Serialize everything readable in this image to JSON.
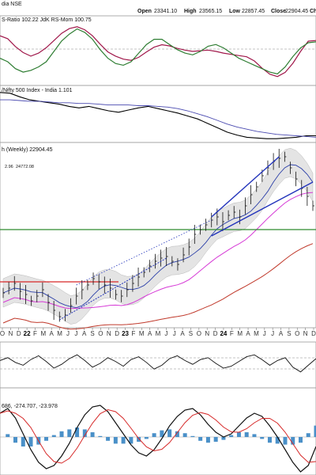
{
  "header": {
    "exchange_partial": "dia NSE",
    "open_label": "Open",
    "open": "23341.10",
    "high_label": "High",
    "high": "23565.15",
    "low_label": "Low",
    "low": "22857.45",
    "close_label": "Close",
    "close": "22904.45",
    "chg_partial": "Ch"
  },
  "chart_data": [
    {
      "type": "line",
      "panel": "rrg-indicators",
      "label": "S-Ratio 102.22 JdK RS-Mom 100.75",
      "series": [
        {
          "name": "JdK RS-Ratio",
          "color": "#a0174a",
          "values": [
            103,
            102.5,
            101.2,
            100.2,
            99.6,
            100.1,
            101.0,
            102.2,
            103.4,
            104.2,
            104.5,
            104.0,
            103.0,
            101.6,
            100.3,
            99.6,
            99.1,
            98.9,
            99.4,
            100.3,
            101.1,
            101.5,
            101.3,
            100.9,
            100.6,
            100.4,
            100.5,
            100.6,
            100.4,
            100.1,
            99.9,
            99.7,
            99.5,
            98.8,
            97.6,
            96.6,
            96.2,
            96.9,
            98.4,
            100.4,
            102.1,
            102.2
          ]
        },
        {
          "name": "JdK RS-Mom",
          "color": "#2e7d32",
          "values": [
            99.8,
            99.6,
            99.2,
            99.0,
            99.1,
            99.3,
            99.6,
            100.2,
            100.8,
            101.2,
            101.5,
            101.3,
            100.9,
            100.3,
            99.8,
            99.5,
            99.4,
            99.6,
            100.1,
            100.6,
            100.9,
            100.9,
            100.6,
            100.3,
            100.1,
            100.0,
            100.2,
            100.5,
            100.6,
            100.4,
            100.1,
            99.8,
            99.6,
            99.4,
            99.2,
            99.0,
            98.9,
            99.3,
            99.9,
            100.4,
            100.7,
            100.75
          ]
        }
      ]
    },
    {
      "type": "line",
      "panel": "relative-strength",
      "label": "/Nifty 500 Index - India 1.101",
      "series": [
        {
          "name": "Ratio",
          "color": "#000000",
          "values": [
            1.16,
            1.159,
            1.154,
            1.15,
            1.148,
            1.146,
            1.144,
            1.141,
            1.139,
            1.141,
            1.138,
            1.135,
            1.133,
            1.136,
            1.139,
            1.141,
            1.138,
            1.135,
            1.132,
            1.128,
            1.124,
            1.118,
            1.112,
            1.106,
            1.102,
            1.099,
            1.098,
            1.097,
            1.097,
            1.098,
            1.099,
            1.101,
            1.101
          ]
        },
        {
          "name": "MA",
          "color": "#4a4ab0",
          "values": [
            1.15,
            1.15,
            1.149,
            1.148,
            1.148,
            1.147,
            1.146,
            1.146,
            1.145,
            1.145,
            1.144,
            1.143,
            1.143,
            1.143,
            1.142,
            1.142,
            1.141,
            1.14,
            1.138,
            1.135,
            1.131,
            1.127,
            1.122,
            1.117,
            1.113,
            1.11,
            1.107,
            1.105,
            1.103,
            1.102,
            1.101,
            1.1,
            1.099
          ]
        }
      ]
    },
    {
      "type": "ohlc",
      "panel": "price-weekly",
      "title": "h (Weekly) 22904.45",
      "legend_values": [
        "2.96",
        "24772.08"
      ],
      "x_ticks": [
        "O",
        "N",
        "D",
        "22",
        "F",
        "M",
        "A",
        "M",
        "J",
        "J",
        "A",
        "S",
        "O",
        "N",
        "D",
        "23",
        "F",
        "M",
        "A",
        "M",
        "J",
        "J",
        "A",
        "S",
        "O",
        "N",
        "D",
        "24",
        "F",
        "M",
        "A",
        "M",
        "J",
        "J",
        "A",
        "S",
        "O",
        "N",
        "D"
      ],
      "year_ticks": [
        "22",
        "23",
        "24"
      ],
      "price": [
        17400,
        17700,
        18000,
        17500,
        17300,
        16900,
        17200,
        17600,
        16800,
        16300,
        15900,
        16000,
        16600,
        17200,
        17600,
        17900,
        18300,
        18100,
        17900,
        17700,
        17300,
        17200,
        17600,
        18000,
        18400,
        18700,
        19100,
        19400,
        19600,
        19700,
        19400,
        19200,
        19800,
        20300,
        21100,
        21400,
        21700,
        22000,
        22200,
        21900,
        22300,
        22500,
        22200,
        22900,
        23600,
        24100,
        24800,
        25300,
        25700,
        25900,
        26000,
        25300,
        24600,
        24000,
        23500,
        22900
      ]
    },
    {
      "type": "line",
      "panel": "breadth-oscillator",
      "values": [
        0.3,
        0.6,
        0.1,
        -0.2,
        0.4,
        0.8,
        0.2,
        -0.5,
        -0.1,
        0.5,
        0.9,
        0.3,
        -0.4,
        0.0,
        0.6,
        0.2,
        -0.3,
        0.4,
        0.7,
        0.1,
        -0.6,
        -0.2,
        0.5,
        0.8,
        0.3,
        -0.1,
        0.4,
        0.6,
        0.0,
        -0.5,
        -0.3,
        0.2,
        0.7,
        0.9,
        0.4,
        -0.2,
        0.3,
        0.6,
        -0.4,
        -0.9,
        -0.2,
        0.5
      ]
    },
    {
      "type": "line",
      "panel": "macd",
      "label": "686, -274.707, -23.978",
      "values": [
        1.5,
        1.8,
        1.2,
        0.2,
        -0.8,
        -1.6,
        -2.0,
        -1.8,
        -1.2,
        -0.4,
        0.6,
        1.4,
        1.9,
        2.0,
        1.6,
        0.9,
        0.2,
        -0.5,
        -1.0,
        -1.2,
        -0.8,
        -0.1,
        0.7,
        1.3,
        1.7,
        1.8,
        1.4,
        0.8,
        0.3,
        0.0,
        0.2,
        0.7,
        1.2,
        1.5,
        1.3,
        0.7,
        0.0,
        -0.8,
        -1.6,
        -2.2,
        -1.8,
        -0.6
      ]
    }
  ]
}
